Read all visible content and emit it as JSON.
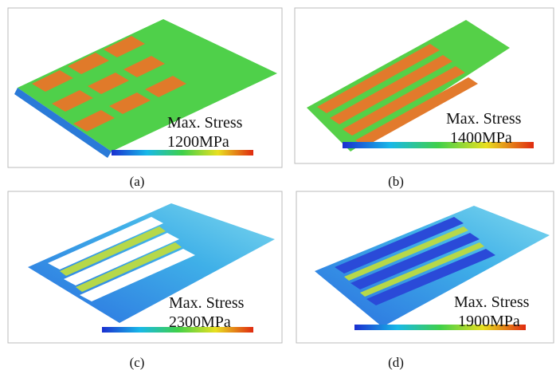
{
  "panels": [
    {
      "stress_label": "Max. Stress",
      "stress_value": "1200MPa",
      "caption": "(a)"
    },
    {
      "stress_label": "Max. Stress",
      "stress_value": "1400MPa",
      "caption": "(b)"
    },
    {
      "stress_label": "Max. Stress",
      "stress_value": "2300MPa",
      "caption": "(c)"
    },
    {
      "stress_label": "Max. Stress",
      "stress_value": "1900MPa",
      "caption": "(d)"
    }
  ]
}
